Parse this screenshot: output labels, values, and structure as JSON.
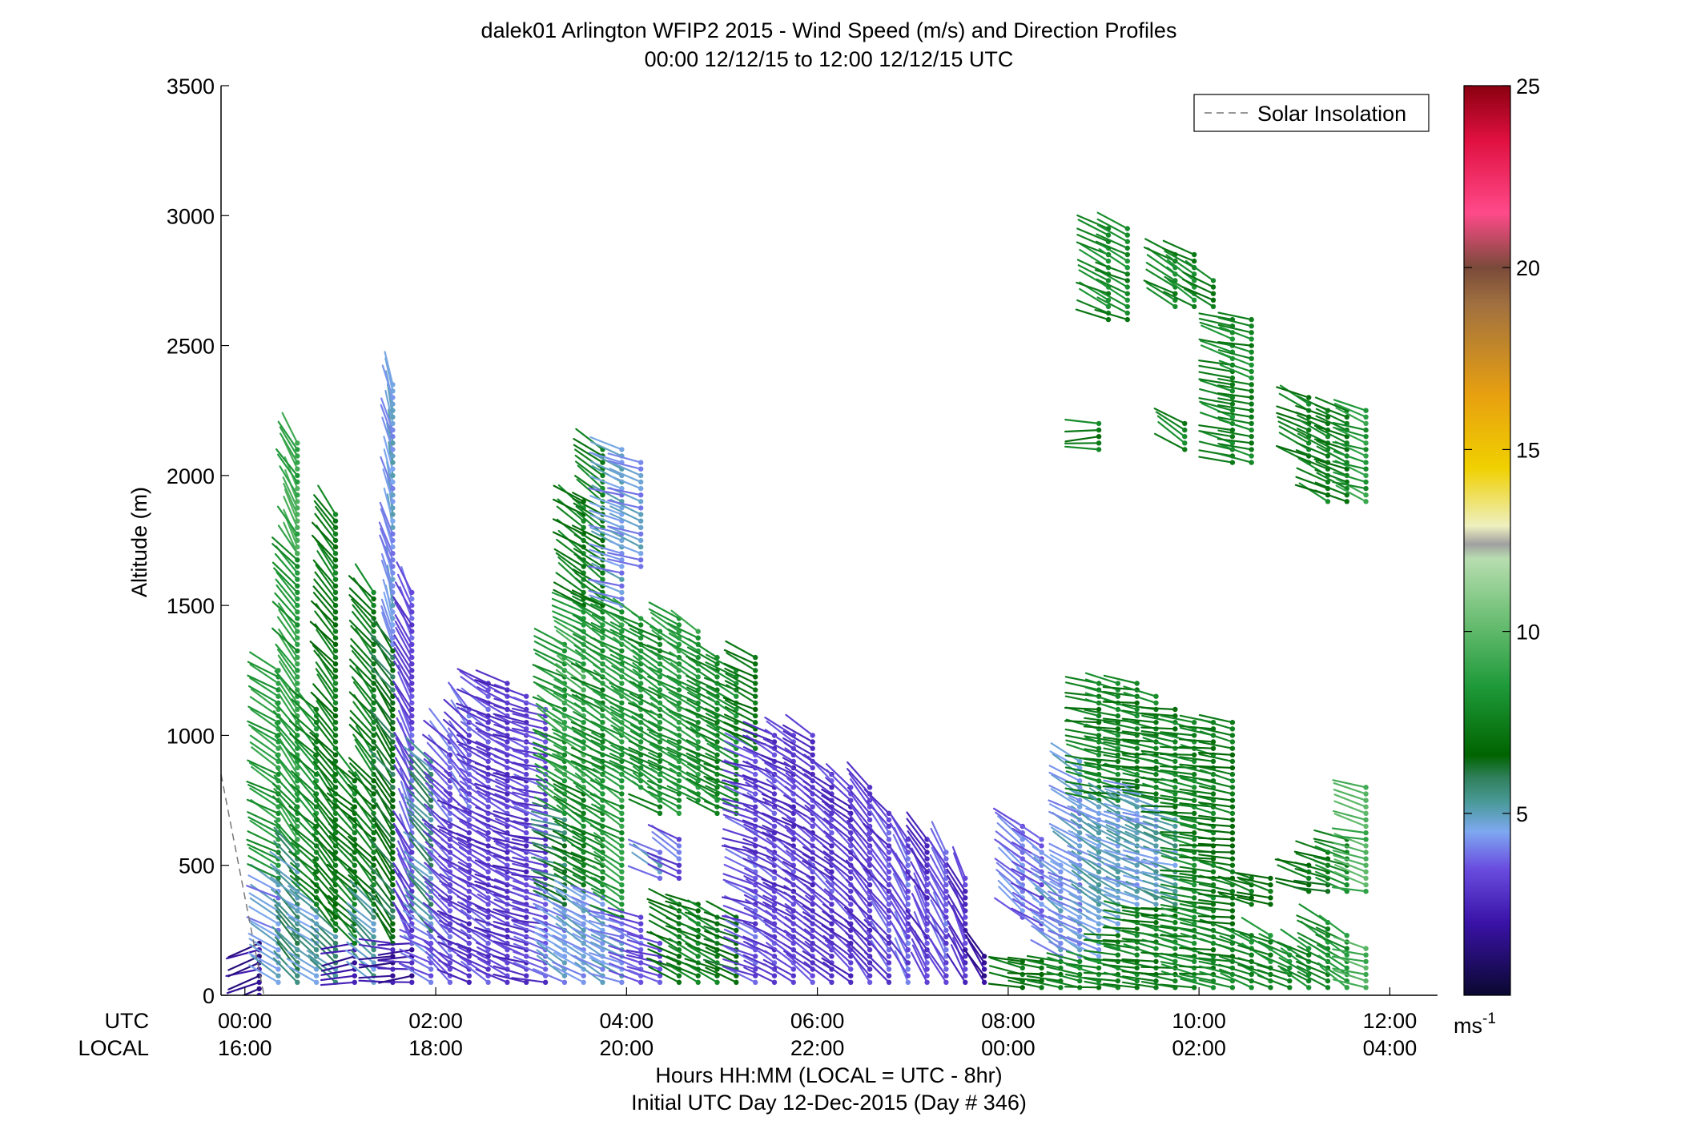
{
  "chart_data": {
    "type": "barbs",
    "title": "dalek01 Arlington WFIP2 2015 - Wind Speed (m/s) and Direction Profiles",
    "subtitle": "00:00 12/12/15 to 12:00 12/12/15  UTC",
    "ylabel": "Altitude (m)",
    "xlabel": "Hours HH:MM  (LOCAL = UTC - 8hr)",
    "xlabel2": "Initial UTC Day 12-Dec-2015 (Day # 346)",
    "row_labels": {
      "utc": "UTC",
      "local": "LOCAL"
    },
    "xlim": [
      -0.25,
      12.5
    ],
    "ylim": [
      0,
      3500
    ],
    "y_ticks": [
      0,
      500,
      1000,
      1500,
      2000,
      2500,
      3000,
      3500
    ],
    "x_ticks_utc": [
      {
        "x": 0,
        "label": "00:00"
      },
      {
        "x": 2,
        "label": "02:00"
      },
      {
        "x": 4,
        "label": "04:00"
      },
      {
        "x": 6,
        "label": "06:00"
      },
      {
        "x": 8,
        "label": "08:00"
      },
      {
        "x": 10,
        "label": "10:00"
      },
      {
        "x": 12,
        "label": "12:00"
      }
    ],
    "x_ticks_local": [
      {
        "x": 0,
        "label": "16:00"
      },
      {
        "x": 2,
        "label": "18:00"
      },
      {
        "x": 4,
        "label": "20:00"
      },
      {
        "x": 6,
        "label": "22:00"
      },
      {
        "x": 8,
        "label": "00:00"
      },
      {
        "x": 10,
        "label": "02:00"
      },
      {
        "x": 12,
        "label": "04:00"
      }
    ],
    "legend": {
      "label": "Solar Insolation",
      "placement": "top-right",
      "style": "dashed",
      "color": "#777777"
    },
    "solar_insolation": [
      {
        "x": -0.25,
        "y": 850
      },
      {
        "x": 0.2,
        "y": 0
      }
    ],
    "colorbar": {
      "range": [
        0,
        25
      ],
      "ticks": [
        5,
        10,
        15,
        20,
        25
      ],
      "units_label": "ms",
      "units_exp": "-1",
      "stops": [
        {
          "v": 0,
          "c": "#0a0830"
        },
        {
          "v": 2,
          "c": "#3a12a8"
        },
        {
          "v": 3.5,
          "c": "#6a4ee0"
        },
        {
          "v": 4.5,
          "c": "#7ea8f0"
        },
        {
          "v": 5.3,
          "c": "#4a9a9a"
        },
        {
          "v": 6,
          "c": "#2f7f5a"
        },
        {
          "v": 6.6,
          "c": "#006400"
        },
        {
          "v": 8.5,
          "c": "#1f9a3a"
        },
        {
          "v": 10.5,
          "c": "#74c27a"
        },
        {
          "v": 12,
          "c": "#b8ddb0"
        },
        {
          "v": 12.4,
          "c": "#a0a0a0"
        },
        {
          "v": 12.9,
          "c": "#eef0c0"
        },
        {
          "v": 14.5,
          "c": "#f0d000"
        },
        {
          "v": 16.5,
          "c": "#e8a010"
        },
        {
          "v": 19,
          "c": "#a07040"
        },
        {
          "v": 20,
          "c": "#7a4a3a"
        },
        {
          "v": 21.5,
          "c": "#ff4a8a"
        },
        {
          "v": 23.5,
          "c": "#e01040"
        },
        {
          "v": 25,
          "c": "#8a0010"
        }
      ]
    },
    "profiles": [
      {
        "x": 0.15,
        "segs": [
          [
            0,
            200,
            1.6,
            250
          ]
        ]
      },
      {
        "x": 0.35,
        "segs": [
          [
            50,
            450,
            4.5,
            300
          ],
          [
            450,
            1250,
            8.5,
            300
          ]
        ]
      },
      {
        "x": 0.55,
        "segs": [
          [
            50,
            550,
            5.5,
            315
          ],
          [
            550,
            1700,
            8.5,
            320
          ],
          [
            1700,
            2130,
            9,
            330
          ]
        ]
      },
      {
        "x": 0.75,
        "segs": [
          [
            50,
            350,
            5,
            305
          ],
          [
            350,
            1100,
            8,
            315
          ]
        ]
      },
      {
        "x": 0.95,
        "segs": [
          [
            50,
            250,
            5.5,
            310
          ],
          [
            250,
            1850,
            7.2,
            320
          ]
        ]
      },
      {
        "x": 1.15,
        "segs": [
          [
            50,
            200,
            2,
            260
          ],
          [
            200,
            850,
            7.5,
            315
          ]
        ]
      },
      {
        "x": 1.35,
        "segs": [
          [
            50,
            350,
            5,
            310
          ],
          [
            350,
            1550,
            7.5,
            320
          ]
        ]
      },
      {
        "x": 1.55,
        "segs": [
          [
            50,
            200,
            2,
            270
          ],
          [
            200,
            1350,
            6.5,
            325
          ],
          [
            1350,
            2350,
            4.5,
            345
          ]
        ]
      },
      {
        "x": 1.75,
        "segs": [
          [
            50,
            200,
            2,
            265
          ],
          [
            200,
            1550,
            3.5,
            335
          ]
        ]
      },
      {
        "x": 1.95,
        "segs": [
          [
            50,
            250,
            4,
            300
          ],
          [
            250,
            900,
            5.5,
            315
          ]
        ]
      },
      {
        "x": 2.15,
        "segs": [
          [
            50,
            1000,
            3.5,
            315
          ]
        ]
      },
      {
        "x": 2.35,
        "segs": [
          [
            50,
            700,
            3,
            300
          ],
          [
            700,
            1100,
            3.5,
            320
          ]
        ]
      },
      {
        "x": 2.55,
        "segs": [
          [
            50,
            1200,
            3.2,
            300
          ]
        ]
      },
      {
        "x": 2.75,
        "segs": [
          [
            50,
            1200,
            3,
            295
          ]
        ]
      },
      {
        "x": 2.95,
        "segs": [
          [
            50,
            1150,
            3,
            290
          ]
        ]
      },
      {
        "x": 3.15,
        "segs": [
          [
            50,
            1100,
            3.2,
            285
          ]
        ]
      },
      {
        "x": 3.35,
        "segs": [
          [
            50,
            350,
            4.5,
            300
          ],
          [
            350,
            700,
            6,
            290
          ],
          [
            700,
            1350,
            8.5,
            300
          ]
        ]
      },
      {
        "x": 3.55,
        "segs": [
          [
            50,
            400,
            4.5,
            300
          ],
          [
            400,
            800,
            7.5,
            300
          ],
          [
            800,
            1500,
            9,
            300
          ],
          [
            1500,
            1900,
            7.5,
            305
          ]
        ]
      },
      {
        "x": 3.75,
        "segs": [
          [
            50,
            400,
            4.5,
            300
          ],
          [
            400,
            1500,
            8,
            300
          ],
          [
            1500,
            2100,
            7.5,
            305
          ]
        ]
      },
      {
        "x": 3.95,
        "segs": [
          [
            50,
            300,
            4.5,
            290
          ],
          [
            300,
            1500,
            8.5,
            300
          ],
          [
            1500,
            2100,
            4.5,
            290
          ]
        ]
      },
      {
        "x": 4.15,
        "segs": [
          [
            50,
            300,
            3.5,
            290
          ],
          [
            800,
            1450,
            8.5,
            300
          ],
          [
            1650,
            2050,
            4.5,
            290
          ]
        ]
      },
      {
        "x": 4.35,
        "segs": [
          [
            50,
            200,
            3.2,
            285
          ],
          [
            700,
            1400,
            8,
            300
          ]
        ]
      },
      {
        "x": 4.55,
        "segs": [
          [
            50,
            350,
            7,
            295
          ],
          [
            700,
            1450,
            8.5,
            300
          ]
        ]
      },
      {
        "x": 4.75,
        "segs": [
          [
            50,
            350,
            7.5,
            295
          ],
          [
            750,
            1400,
            8.5,
            300
          ]
        ]
      },
      {
        "x": 4.95,
        "segs": [
          [
            50,
            300,
            7.5,
            295
          ],
          [
            700,
            1300,
            7.8,
            300
          ]
        ]
      },
      {
        "x": 5.15,
        "segs": [
          [
            50,
            300,
            6.5,
            290
          ],
          [
            700,
            1250,
            7.8,
            295
          ]
        ]
      },
      {
        "x": 5.35,
        "segs": [
          [
            50,
            950,
            3.3,
            290
          ],
          [
            950,
            1300,
            7,
            295
          ]
        ]
      },
      {
        "x": 5.55,
        "segs": [
          [
            50,
            1000,
            3.2,
            300
          ]
        ]
      },
      {
        "x": 5.75,
        "segs": [
          [
            50,
            1000,
            3,
            300
          ]
        ]
      },
      {
        "x": 5.95,
        "segs": [
          [
            50,
            1000,
            3,
            305
          ]
        ]
      },
      {
        "x": 6.15,
        "segs": [
          [
            50,
            850,
            3.2,
            310
          ]
        ]
      },
      {
        "x": 6.35,
        "segs": [
          [
            50,
            800,
            3,
            310
          ]
        ]
      },
      {
        "x": 6.55,
        "segs": [
          [
            50,
            800,
            3,
            320
          ]
        ]
      },
      {
        "x": 6.75,
        "segs": [
          [
            50,
            700,
            3.2,
            320
          ]
        ]
      },
      {
        "x": 6.95,
        "segs": [
          [
            50,
            600,
            3.5,
            330
          ]
        ]
      },
      {
        "x": 7.15,
        "segs": [
          [
            50,
            600,
            3,
            330
          ]
        ]
      },
      {
        "x": 7.35,
        "segs": [
          [
            50,
            550,
            3.5,
            330
          ]
        ]
      },
      {
        "x": 7.55,
        "segs": [
          [
            50,
            450,
            3,
            335
          ]
        ]
      },
      {
        "x": 7.75,
        "segs": [
          [
            50,
            150,
            2,
            330
          ]
        ]
      },
      {
        "x": 8.15,
        "segs": [
          [
            30,
            150,
            7,
            280
          ],
          [
            300,
            650,
            4,
            310
          ]
        ]
      },
      {
        "x": 8.35,
        "segs": [
          [
            30,
            150,
            7.2,
            280
          ],
          [
            250,
            600,
            3.8,
            305
          ]
        ]
      },
      {
        "x": 8.55,
        "segs": [
          [
            30,
            150,
            7.5,
            280
          ],
          [
            150,
            500,
            4.5,
            305
          ]
        ]
      },
      {
        "x": 8.75,
        "segs": [
          [
            30,
            150,
            7.5,
            280
          ],
          [
            150,
            900,
            4.5,
            300
          ]
        ]
      },
      {
        "x": 8.95,
        "segs": [
          [
            30,
            150,
            7.8,
            280
          ],
          [
            150,
            750,
            4.8,
            300
          ],
          [
            750,
            1200,
            7.5,
            280
          ]
        ]
      },
      {
        "x": 9.15,
        "segs": [
          [
            30,
            250,
            7.8,
            280
          ],
          [
            250,
            750,
            4.8,
            295
          ],
          [
            750,
            1200,
            7.5,
            280
          ]
        ]
      },
      {
        "x": 9.35,
        "segs": [
          [
            30,
            350,
            7.5,
            280
          ],
          [
            350,
            800,
            4.8,
            290
          ],
          [
            800,
            1200,
            7.5,
            280
          ]
        ]
      },
      {
        "x": 9.55,
        "segs": [
          [
            30,
            350,
            7.5,
            280
          ],
          [
            350,
            750,
            4.8,
            290
          ],
          [
            750,
            1150,
            7.5,
            280
          ]
        ]
      },
      {
        "x": 9.75,
        "segs": [
          [
            30,
            350,
            7.5,
            280
          ],
          [
            350,
            700,
            5,
            285
          ],
          [
            700,
            1100,
            7.5,
            280
          ]
        ]
      },
      {
        "x": 9.95,
        "segs": [
          [
            30,
            150,
            7.8,
            280
          ],
          [
            150,
            1050,
            7.8,
            280
          ]
        ]
      },
      {
        "x": 10.15,
        "segs": [
          [
            30,
            150,
            7.8,
            280
          ],
          [
            150,
            1050,
            7.5,
            280
          ]
        ]
      },
      {
        "x": 10.35,
        "segs": [
          [
            30,
            150,
            7.8,
            280
          ],
          [
            150,
            1050,
            7.2,
            280
          ]
        ]
      },
      {
        "x": 10.55,
        "segs": [
          [
            30,
            250,
            7.8,
            290
          ],
          [
            350,
            450,
            7,
            285
          ]
        ]
      },
      {
        "x": 10.75,
        "segs": [
          [
            30,
            250,
            8,
            295
          ],
          [
            350,
            450,
            7,
            285
          ]
        ]
      },
      {
        "x": 10.95,
        "segs": [
          [
            30,
            200,
            8,
            295
          ]
        ]
      },
      {
        "x": 11.15,
        "segs": [
          [
            30,
            200,
            8,
            300
          ],
          [
            400,
            500,
            7,
            285
          ]
        ]
      },
      {
        "x": 11.35,
        "segs": [
          [
            30,
            300,
            8,
            300
          ],
          [
            400,
            550,
            7,
            285
          ]
        ]
      },
      {
        "x": 11.55,
        "segs": [
          [
            30,
            250,
            8.2,
            300
          ],
          [
            400,
            600,
            7.5,
            285
          ]
        ]
      },
      {
        "x": 11.75,
        "segs": [
          [
            30,
            200,
            9.5,
            285
          ],
          [
            400,
            800,
            9.5,
            285
          ]
        ]
      },
      {
        "x": 9.05,
        "segs": [
          [
            2600,
            2950,
            7.8,
            295
          ]
        ]
      },
      {
        "x": 9.25,
        "segs": [
          [
            2600,
            2950,
            7.8,
            295
          ]
        ]
      },
      {
        "x": 9.75,
        "segs": [
          [
            2650,
            2850,
            7.8,
            300
          ]
        ]
      },
      {
        "x": 9.95,
        "segs": [
          [
            2650,
            2850,
            7.8,
            300
          ]
        ]
      },
      {
        "x": 10.15,
        "segs": [
          [
            2650,
            2750,
            7.5,
            300
          ]
        ]
      },
      {
        "x": 10.35,
        "segs": [
          [
            2050,
            2600,
            7.8,
            285
          ]
        ]
      },
      {
        "x": 10.55,
        "segs": [
          [
            2050,
            2600,
            7.8,
            285
          ]
        ]
      },
      {
        "x": 11.15,
        "segs": [
          [
            2050,
            2300,
            7.5,
            295
          ]
        ]
      },
      {
        "x": 11.35,
        "segs": [
          [
            1900,
            2250,
            7.5,
            295
          ]
        ]
      },
      {
        "x": 11.55,
        "segs": [
          [
            1900,
            2250,
            7.5,
            295
          ]
        ]
      },
      {
        "x": 11.75,
        "segs": [
          [
            1900,
            2250,
            8.5,
            290
          ]
        ]
      },
      {
        "x": 8.95,
        "segs": [
          [
            2100,
            2200,
            7.5,
            270
          ]
        ]
      },
      {
        "x": 9.85,
        "segs": [
          [
            2100,
            2200,
            7.5,
            300
          ]
        ]
      },
      {
        "x": 4.35,
        "segs": [
          [
            450,
            550,
            4.5,
            300
          ]
        ]
      },
      {
        "x": 4.55,
        "segs": [
          [
            450,
            600,
            3.5,
            300
          ]
        ]
      }
    ]
  }
}
